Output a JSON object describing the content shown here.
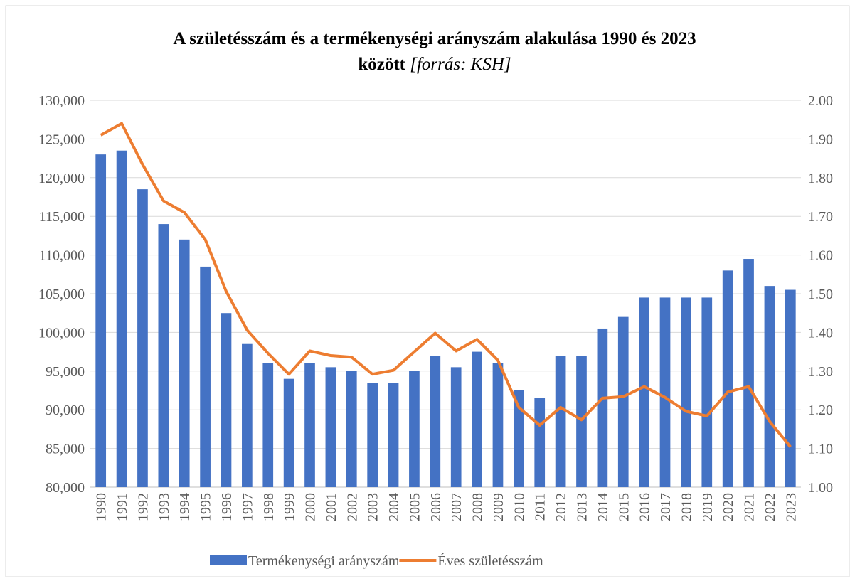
{
  "chart_data": {
    "type": "bar-line",
    "title": [
      "A születésszám és a termékenységi arányszám alakulása 1990 és 2023",
      "között"
    ],
    "title_note": "[forrás: KSH]",
    "categories": [
      "1990",
      "1991",
      "1992",
      "1993",
      "1994",
      "1995",
      "1996",
      "1997",
      "1998",
      "1999",
      "2000",
      "2001",
      "2002",
      "2003",
      "2004",
      "2005",
      "2006",
      "2007",
      "2008",
      "2009",
      "2010",
      "2011",
      "2012",
      "2013",
      "2014",
      "2015",
      "2016",
      "2017",
      "2018",
      "2019",
      "2020",
      "2021",
      "2022",
      "2023"
    ],
    "series": [
      {
        "name": "Termékenységi arányszám",
        "type": "bar",
        "axis": "y2",
        "color": "#4472c4",
        "values": [
          1.86,
          1.87,
          1.77,
          1.68,
          1.64,
          1.57,
          1.45,
          1.37,
          1.32,
          1.28,
          1.32,
          1.31,
          1.3,
          1.27,
          1.27,
          1.3,
          1.34,
          1.31,
          1.35,
          1.32,
          1.25,
          1.23,
          1.34,
          1.34,
          1.41,
          1.44,
          1.49,
          1.49,
          1.49,
          1.49,
          1.56,
          1.59,
          1.52,
          1.51
        ]
      },
      {
        "name": "Éves születésszám",
        "type": "line",
        "axis": "y",
        "color": "#ed7d31",
        "values": [
          125500,
          127000,
          121700,
          117000,
          115500,
          112000,
          105300,
          100300,
          97300,
          94600,
          97600,
          97000,
          96800,
          94600,
          95100,
          97500,
          99900,
          97600,
          99100,
          96400,
          90300,
          88000,
          90300,
          88700,
          91500,
          91700,
          93000,
          91600,
          89800,
          89200,
          92300,
          93000,
          88500,
          85200
        ]
      }
    ],
    "ylim": [
      80000,
      130000
    ],
    "yticks": [
      {
        "value": 80000,
        "label": "80,000"
      },
      {
        "value": 85000,
        "label": "85,000"
      },
      {
        "value": 90000,
        "label": "90,000"
      },
      {
        "value": 95000,
        "label": "95,000"
      },
      {
        "value": 100000,
        "label": "100,000"
      },
      {
        "value": 105000,
        "label": "105,000"
      },
      {
        "value": 110000,
        "label": "110,000"
      },
      {
        "value": 115000,
        "label": "115,000"
      },
      {
        "value": 120000,
        "label": "120,000"
      },
      {
        "value": 125000,
        "label": "125,000"
      },
      {
        "value": 130000,
        "label": "130,000"
      }
    ],
    "y2lim": [
      1.0,
      2.0
    ],
    "y2ticks": [
      {
        "value": 1.0,
        "label": "1.00"
      },
      {
        "value": 1.1,
        "label": "1.10"
      },
      {
        "value": 1.2,
        "label": "1.20"
      },
      {
        "value": 1.3,
        "label": "1.30"
      },
      {
        "value": 1.4,
        "label": "1.40"
      },
      {
        "value": 1.5,
        "label": "1.50"
      },
      {
        "value": 1.6,
        "label": "1.60"
      },
      {
        "value": 1.7,
        "label": "1.70"
      },
      {
        "value": 1.8,
        "label": "1.80"
      },
      {
        "value": 1.9,
        "label": "1.90"
      },
      {
        "value": 2.0,
        "label": "2.00"
      }
    ],
    "grid": true,
    "legend": "bottom"
  }
}
